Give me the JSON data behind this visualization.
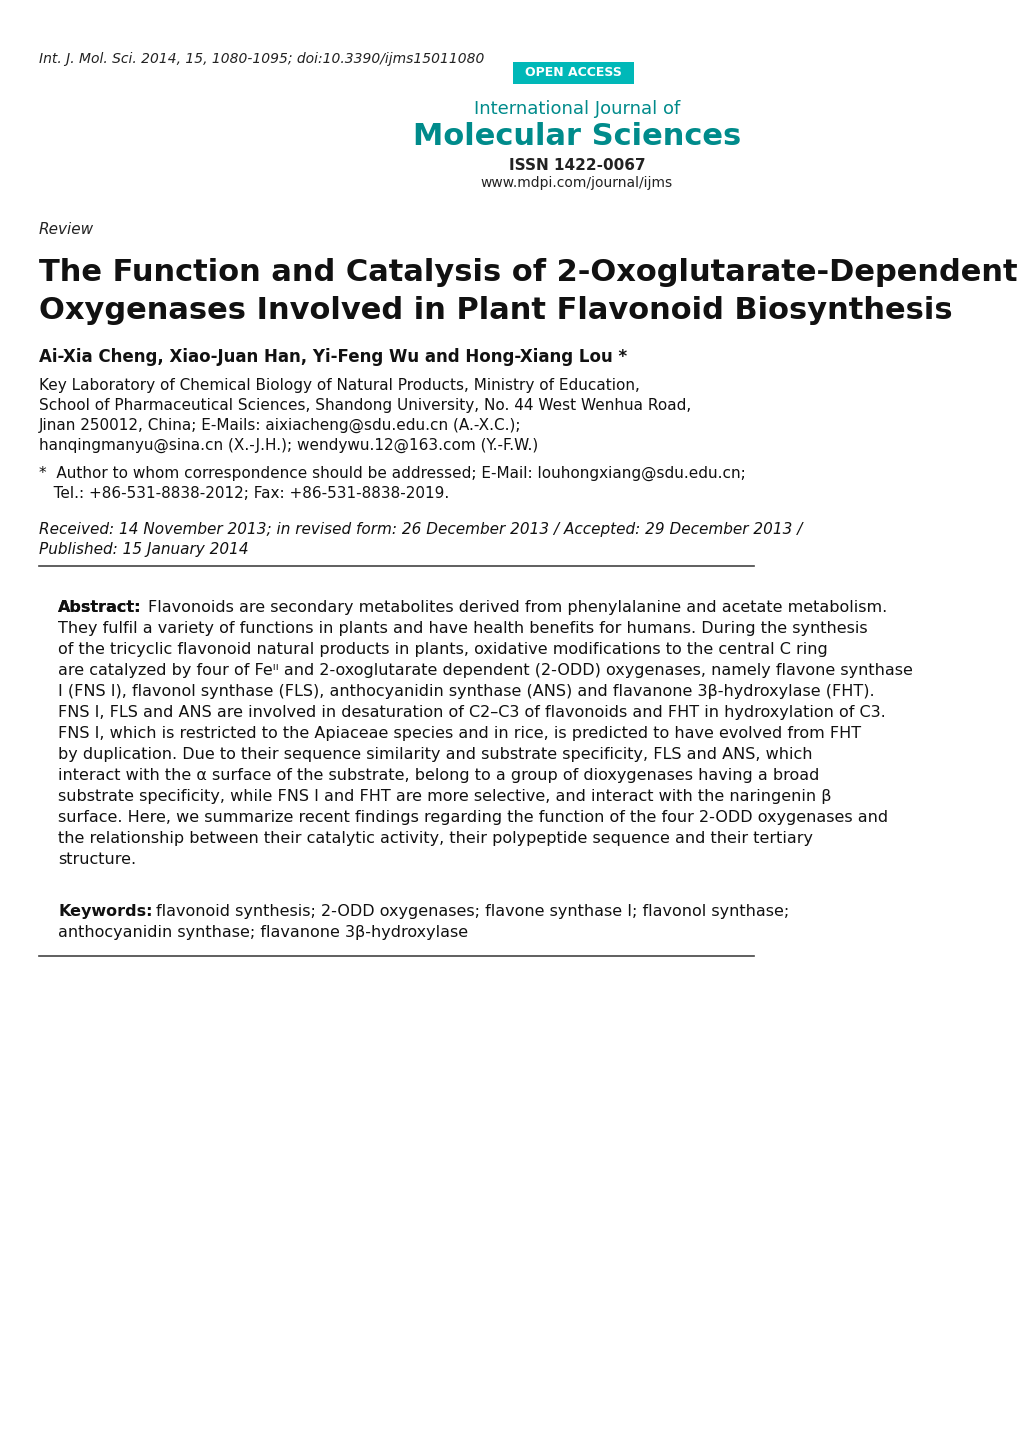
{
  "background_color": "#ffffff",
  "top_citation": "Int. J. Mol. Sci. 2014, 15, 1080-1095; doi:10.3390/ijms15011080",
  "open_access_bg": "#00b0b0",
  "open_access_text": "OPEN ACCESS",
  "journal_intl": "International Journal of",
  "journal_name": "Molecular Sciences",
  "issn": "ISSN 1422-0067",
  "website": "www.mdpi.com/journal/ijms",
  "section_label": "Review",
  "title_line1": "The Function and Catalysis of 2-Oxoglutarate-Dependent",
  "title_line2": "Oxygenases Involved in Plant Flavonoid Biosynthesis",
  "authors": "Ai-Xia Cheng, Xiao-Juan Han, Yi-Feng Wu and Hong-Xiang Lou *",
  "affil1": "Key Laboratory of Chemical Biology of Natural Products, Ministry of Education,",
  "affil2": "School of Pharmaceutical Sciences, Shandong University, No. 44 West Wenhua Road,",
  "affil3": "Jinan 250012, China; E-Mails: aixiacheng@sdu.edu.cn (A.-X.C.);",
  "affil4": "hanqingmanyu@sina.cn (X.-J.H.); wendywu.12@163.com (Y.-F.W.)",
  "corr1": "*  Author to whom correspondence should be addressed; E-Mail: louhongxiang@sdu.edu.cn;",
  "corr2": "   Tel.: +86-531-8838-2012; Fax: +86-531-8838-2019.",
  "received": "Received: 14 November 2013; in revised form: 26 December 2013 / Accepted: 29 December 2013 /",
  "published": "Published: 15 January 2014",
  "abstract_label": "Abstract:",
  "abstract_text": " Flavonoids are secondary metabolites derived from phenylalanine and acetate metabolism. They fulfil a variety of functions in plants and have health benefits for humans. During the synthesis of the tricyclic flavonoid natural products in plants, oxidative modifications to the central C ring are catalyzed by four of Feᴵᴵ and 2-oxoglutarate dependent (2-ODD) oxygenases, namely flavone synthase I (FNS I), flavonol synthase (FLS), anthocyanidin synthase (ANS) and flavanone 3β-hydroxylase (FHT). FNS I, FLS and ANS are involved in desaturation of C2–C3 of flavonoids and FHT in hydroxylation of C3. FNS I, which is restricted to the Apiaceae species and in rice, is predicted to have evolved from FHT by duplication. Due to their sequence similarity and substrate specificity, FLS and ANS, which interact with the α surface of the substrate, belong to a group of dioxygenases having a broad substrate specificity, while FNS I and FHT are more selective, and interact with the naringenin β surface. Here, we summarize recent findings regarding the function of the four 2-ODD oxygenases and the relationship between their catalytic activity, their polypeptide sequence and their tertiary structure.",
  "keywords_label": "Keywords:",
  "keywords_text": " flavonoid synthesis; 2-ODD oxygenases; flavone synthase I; flavonol synthase; anthocyanidin synthase; flavanone 3β-hydroxylase",
  "teal_color": "#008b8b",
  "dark_teal": "#006666"
}
